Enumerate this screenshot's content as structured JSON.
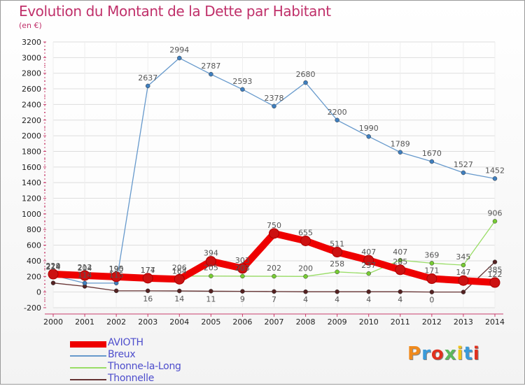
{
  "header": {
    "title": "Evolution du Montant de la Dette par Habitant",
    "subtitle": "(en €)"
  },
  "logo_text": "Proxiti",
  "colors": {
    "title": "#c0306a",
    "axis": "#c83c6a",
    "grid": "#dddddd",
    "legend_text": "#4d4dcc"
  },
  "chart_data": {
    "type": "line",
    "title": "Evolution du Montant de la Dette par Habitant",
    "subtitle": "(en €)",
    "xlabel": "",
    "ylabel": "",
    "x": [
      "2000",
      "2001",
      "2002",
      "2003",
      "2004",
      "2005",
      "2006",
      "2007",
      "2008",
      "2009",
      "2010",
      "2011",
      "2012",
      "2013",
      "2014"
    ],
    "ylim": [
      -200,
      3200
    ],
    "yticks": [
      -200,
      0,
      200,
      400,
      600,
      800,
      1000,
      1200,
      1400,
      1600,
      1800,
      2000,
      2200,
      2400,
      2600,
      2800,
      3000,
      3200
    ],
    "grid": true,
    "legend_position": "bottom-left",
    "series": [
      {
        "name": "AVIOTH",
        "color": "#ee0000",
        "marker": "#cc1111",
        "values": [
          229,
          212,
          195,
          177,
          164,
          394,
          303,
          750,
          655,
          511,
          407,
          285,
          171,
          147,
          122
        ],
        "labels": [
          "229",
          "212",
          "195",
          "177",
          "164",
          "394",
          "303",
          "750",
          "655",
          "511",
          "407",
          "285",
          "171",
          "147",
          "122"
        ]
      },
      {
        "name": "Breux",
        "color": "#6699cc",
        "marker": "#3f7fbf",
        "values": [
          214,
          114,
          115,
          2637,
          2994,
          2787,
          2593,
          2378,
          2680,
          2200,
          1990,
          1789,
          1670,
          1527,
          1452
        ],
        "labels": [
          "214",
          "114",
          "115",
          "2637",
          "2994",
          "2787",
          "2593",
          "2378",
          "2680",
          "2200",
          "1990",
          "1789",
          "1670",
          "1527",
          "1452"
        ]
      },
      {
        "name": "Thonne-la-Long",
        "color": "#99dd66",
        "marker": "#77cc33",
        "values": [
          224,
          204,
          190,
          174,
          206,
          205,
          203,
          202,
          200,
          258,
          237,
          407,
          369,
          345,
          906
        ],
        "labels": [
          "224",
          "204",
          "190",
          "174",
          "206",
          "205",
          "203",
          "202",
          "200",
          "258",
          "237",
          "407",
          "369",
          "345",
          "906"
        ]
      },
      {
        "name": "Thonnelle",
        "color": "#663333",
        "marker": "#552222",
        "values": [
          116,
          73,
          16,
          16,
          14,
          11,
          9,
          7,
          4,
          4,
          4,
          4,
          0,
          0,
          385
        ],
        "labels": [
          "",
          "",
          "",
          "16",
          "14",
          "11",
          "9",
          "7",
          "4",
          "4",
          "4",
          "4",
          "0",
          "",
          "385"
        ]
      }
    ]
  }
}
